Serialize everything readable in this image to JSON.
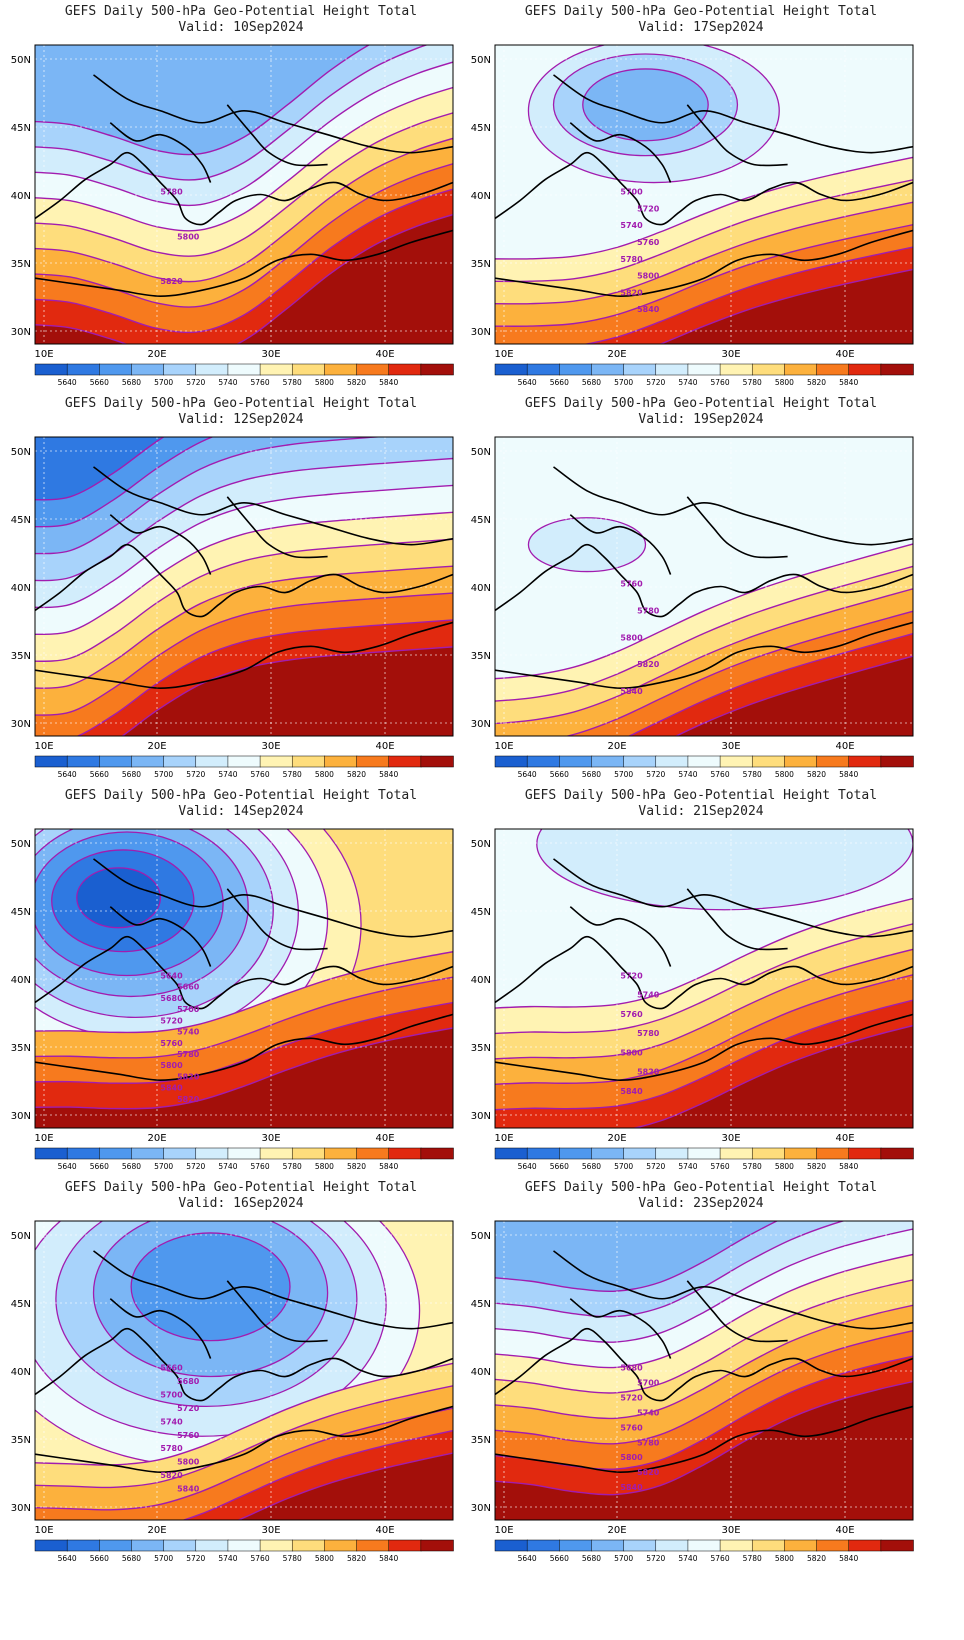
{
  "colorbar": {
    "colors": [
      "#1a5fd0",
      "#2f79e2",
      "#4f98ee",
      "#7bb6f5",
      "#a8d3fb",
      "#d2edfc",
      "#eefbfd",
      "#fff3b3",
      "#fedd7c",
      "#fcb13d",
      "#f77a1e",
      "#e1290f",
      "#a30f0a"
    ],
    "labels": [
      "5640",
      "5660",
      "5680",
      "5700",
      "5720",
      "5740",
      "5760",
      "5780",
      "5800",
      "5820",
      "5840"
    ]
  },
  "axes": {
    "lon_labels": [
      "10E",
      "20E",
      "30E",
      "40E"
    ],
    "lat_labels": [
      "50N",
      "45N",
      "40N",
      "35N",
      "30N"
    ]
  },
  "panels": [
    {
      "title": "GEFS Daily 500-hPa Geo-Potential Height Total",
      "valid": "Valid: 10Sep2024",
      "contour_labels": [
        "5780",
        "5800",
        "5820"
      ]
    },
    {
      "title": "GEFS Daily 500-hPa Geo-Potential Height Total",
      "valid": "Valid: 17Sep2024",
      "contour_labels": [
        "5700",
        "5720",
        "5740",
        "5760",
        "5780",
        "5800",
        "5820",
        "5840"
      ]
    },
    {
      "title": "GEFS Daily 500-hPa Geo-Potential Height Total",
      "valid": "Valid: 12Sep2024",
      "contour_labels": []
    },
    {
      "title": "GEFS Daily 500-hPa Geo-Potential Height Total",
      "valid": "Valid: 19Sep2024",
      "contour_labels": [
        "5760",
        "5780",
        "5800",
        "5820",
        "5840"
      ]
    },
    {
      "title": "GEFS Daily 500-hPa Geo-Potential Height Total",
      "valid": "Valid: 14Sep2024",
      "contour_labels": [
        "5640",
        "5660",
        "5680",
        "5700",
        "5720",
        "5740",
        "5760",
        "5780",
        "5800",
        "5820",
        "5840",
        "5820"
      ]
    },
    {
      "title": "GEFS Daily 500-hPa Geo-Potential Height Total",
      "valid": "Valid: 21Sep2024",
      "contour_labels": [
        "5720",
        "5740",
        "5760",
        "5780",
        "5800",
        "5820",
        "5840"
      ]
    },
    {
      "title": "GEFS Daily 500-hPa Geo-Potential Height Total",
      "valid": "Valid: 16Sep2024",
      "contour_labels": [
        "5660",
        "5680",
        "5700",
        "5720",
        "5740",
        "5760",
        "5780",
        "5800",
        "5820",
        "5840"
      ]
    },
    {
      "title": "GEFS Daily 500-hPa Geo-Potential Height Total",
      "valid": "Valid: 23Sep2024",
      "contour_labels": [
        "5680",
        "5700",
        "5720",
        "5740",
        "5760",
        "5780",
        "5800",
        "5820",
        "5840"
      ]
    }
  ]
}
